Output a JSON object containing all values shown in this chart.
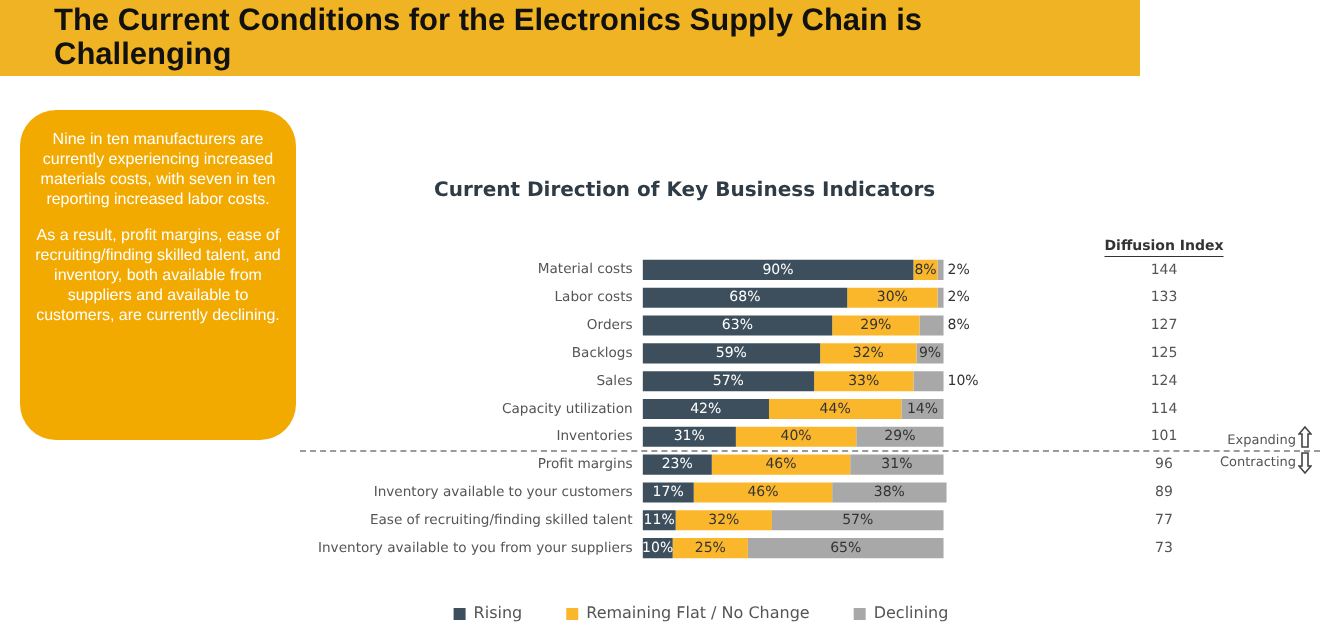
{
  "chart_data": {
    "type": "bar",
    "orientation": "horizontal",
    "stacked": true,
    "title": "The Current Conditions for the Electronics Supply Chain is Challenging",
    "subtitle": "Current Direction of Key Business Indicators",
    "categories": [
      "Material costs",
      "Labor costs",
      "Orders",
      "Backlogs",
      "Sales",
      "Capacity utilization",
      "Inventories",
      "Profit margins",
      "Inventory available to your customers",
      "Ease of recruiting/finding skilled talent",
      "Inventory available to you from your suppliers"
    ],
    "series": [
      {
        "name": "Rising",
        "color": "#3d4f5c",
        "values": [
          90,
          68,
          63,
          59,
          57,
          42,
          31,
          23,
          17,
          11,
          10
        ],
        "value_labels": [
          "90%",
          "68%",
          "63%",
          "59%",
          "57%",
          "42%",
          "31%",
          "23%",
          "17%",
          "11%",
          "10%"
        ]
      },
      {
        "name": "Remaining Flat / No Change",
        "color": "#fbb72c",
        "values": [
          8,
          30,
          29,
          32,
          33,
          44,
          40,
          46,
          46,
          32,
          25
        ],
        "value_labels": [
          "8%",
          "30%",
          "29%",
          "32%",
          "33%",
          "44%",
          "40%",
          "46%",
          "46%",
          "32%",
          "25%"
        ]
      },
      {
        "name": "Declining",
        "color": "#a8a8a8",
        "values": [
          2,
          2,
          8,
          9,
          10,
          14,
          29,
          31,
          38,
          57,
          65
        ],
        "value_labels": [
          "2%",
          "2%",
          "8%",
          "9%",
          "10%",
          "14%",
          "29%",
          "31%",
          "38%",
          "57%",
          "65%"
        ]
      }
    ],
    "annotations": [
      "Nine in ten manufacturers are currently experiencing increased materials costs, with seven in ten reporting increased labor costs.",
      "As a result, profit margins, ease of recruiting/finding skilled talent, and inventory, both available from suppliers and available to customers, are currently declining.",
      "Diffusion Index",
      "Expanding",
      "Contracting",
      "144",
      "133",
      "127",
      "125",
      "124",
      "114",
      "101",
      "96",
      "89",
      "77",
      "73"
    ],
    "legend": "bottom",
    "tick_labels": "y",
    "grid": false
  }
}
